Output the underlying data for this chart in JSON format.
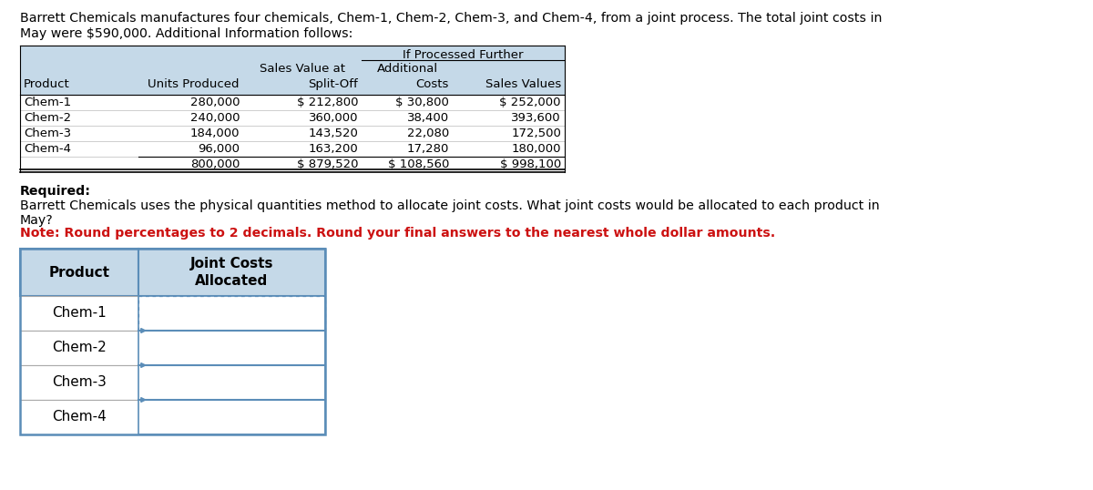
{
  "title_line1": "Barrett Chemicals manufactures four chemicals, Chem-1, Chem-2, Chem-3, and Chem-4, from a joint process. The total joint costs in",
  "title_line2": "May were $590,000. Additional Information follows:",
  "top_table_header": {
    "if_processed": "If Processed Further",
    "sales_value_at": "Sales Value at",
    "additional": "Additional",
    "col3": "Product",
    "col4": "Units Produced",
    "col5": "Split-Off",
    "col6": "Costs",
    "col7": "Sales Values"
  },
  "top_table_rows": [
    [
      "Chem-1",
      "280,000",
      "$ 212,800",
      "$ 30,800",
      "$ 252,000"
    ],
    [
      "Chem-2",
      "240,000",
      "360,000",
      "38,400",
      "393,600"
    ],
    [
      "Chem-3",
      "184,000",
      "143,520",
      "22,080",
      "172,500"
    ],
    [
      "Chem-4",
      "96,000",
      "163,200",
      "17,280",
      "180,000"
    ],
    [
      "",
      "800,000",
      "$ 879,520",
      "$ 108,560",
      "$ 998,100"
    ]
  ],
  "required_text": "Required:",
  "body_line1": "Barrett Chemicals uses the physical quantities method to allocate joint costs. What joint costs would be allocated to each product in",
  "body_line2": "May?",
  "note_text": "Note: Round percentages to 2 decimals. Round your final answers to the nearest whole dollar amounts.",
  "bottom_products": [
    "Chem-1",
    "Chem-2",
    "Chem-3",
    "Chem-4"
  ],
  "header_bg": "#c5d9e8",
  "header_bg_light": "#d9e8f2",
  "table_border_color": "#5b8db8",
  "note_color": "#cc1111",
  "bg_color": "#ffffff",
  "text_color": "#000000",
  "grid_color": "#aaaaaa",
  "font_size_title": 10.2,
  "font_size_table": 9.5,
  "font_size_body": 10.2,
  "font_size_bt": 11.0
}
